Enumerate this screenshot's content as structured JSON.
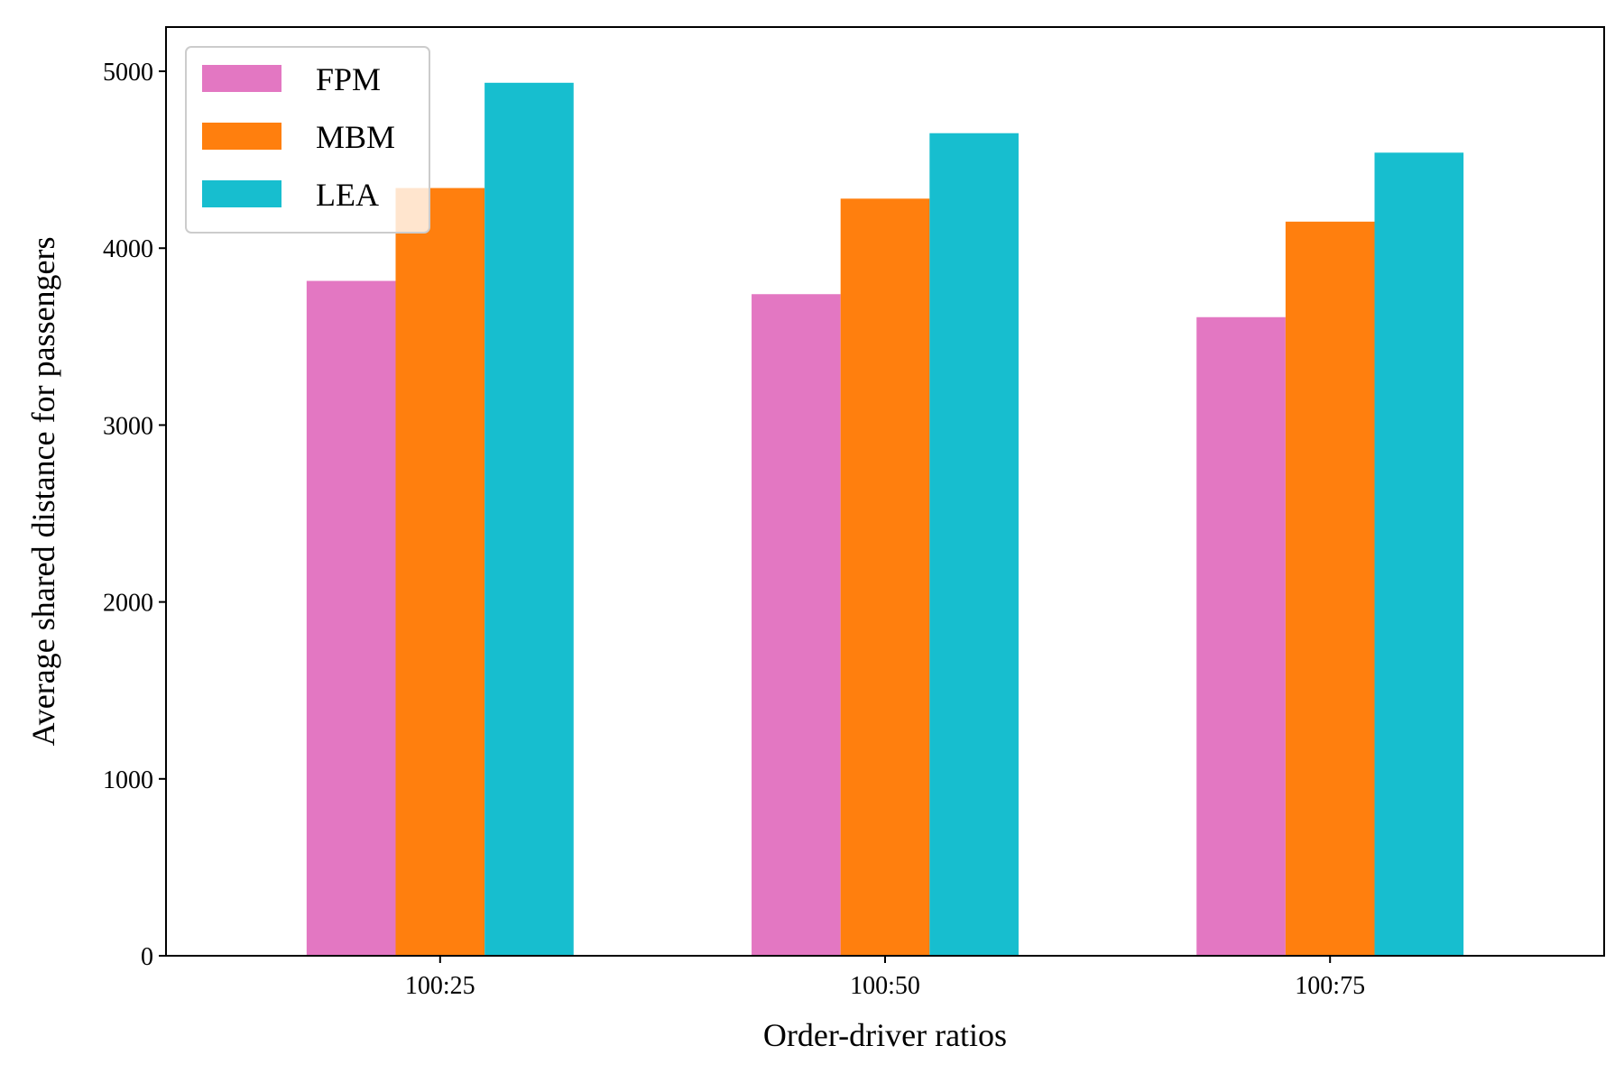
{
  "chart_data": {
    "type": "bar",
    "xlabel": "Order-driver ratios",
    "ylabel": "Average shared distance for passengers",
    "categories": [
      "100:25",
      "100:50",
      "100:75"
    ],
    "series": [
      {
        "name": "FPM",
        "color": "#e377c2",
        "values": [
          3815,
          3740,
          3610
        ]
      },
      {
        "name": "MBM",
        "color": "#ff7f0e",
        "values": [
          4340,
          4280,
          4150
        ]
      },
      {
        "name": "LEA",
        "color": "#17becf",
        "values": [
          4935,
          4650,
          4540
        ]
      }
    ],
    "ylim": [
      0,
      5250
    ],
    "yticks": [
      0,
      1000,
      2000,
      3000,
      4000,
      5000
    ],
    "ytick_labels": [
      "0",
      "1000",
      "2000",
      "3000",
      "4000",
      "5000"
    ],
    "legend_position": "upper-left",
    "grid": false
  }
}
